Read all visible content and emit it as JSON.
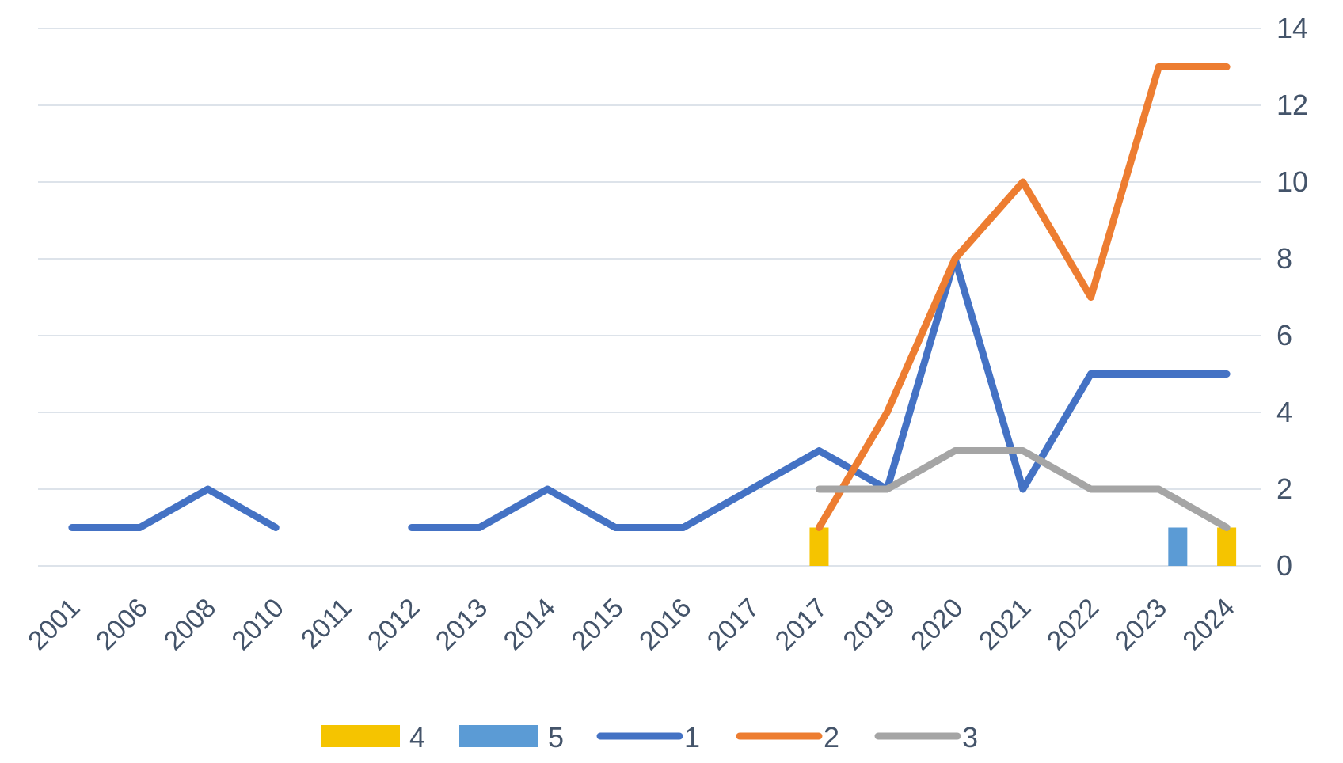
{
  "chart_data": {
    "type": "line",
    "categories": [
      "2001",
      "2006",
      "2008",
      "2010",
      "2011",
      "2012",
      "2013",
      "2014",
      "2015",
      "2016",
      "2017",
      "2017",
      "2019",
      "2020",
      "2021",
      "2022",
      "2023",
      "2024"
    ],
    "ylim": [
      0,
      14
    ],
    "yticks": [
      "0",
      "2",
      "4",
      "6",
      "8",
      "10",
      "12",
      "14"
    ],
    "y_axis_side": "right",
    "grid": true,
    "legend_position": "bottom",
    "colors": {
      "4": "#f5c400",
      "5": "#5b9bd5",
      "1": "#4472c4",
      "2": "#ed7d31",
      "3": "#a5a5a5"
    },
    "series": [
      {
        "name": "4",
        "kind": "bar",
        "values": [
          null,
          null,
          null,
          null,
          null,
          null,
          null,
          null,
          null,
          null,
          null,
          1,
          null,
          null,
          null,
          null,
          null,
          1
        ]
      },
      {
        "name": "5",
        "kind": "bar",
        "values": [
          null,
          null,
          null,
          null,
          null,
          null,
          null,
          null,
          null,
          null,
          null,
          null,
          null,
          null,
          null,
          null,
          1,
          null
        ]
      },
      {
        "name": "1",
        "kind": "line",
        "values": [
          1,
          1,
          2,
          1,
          null,
          1,
          1,
          2,
          1,
          1,
          2,
          3,
          2,
          8,
          2,
          5,
          5,
          5
        ]
      },
      {
        "name": "2",
        "kind": "line",
        "values": [
          null,
          null,
          null,
          null,
          null,
          null,
          null,
          null,
          null,
          null,
          null,
          1,
          4,
          8,
          10,
          7,
          13,
          13
        ]
      },
      {
        "name": "3",
        "kind": "line",
        "values": [
          null,
          null,
          null,
          null,
          null,
          null,
          null,
          null,
          null,
          null,
          null,
          2,
          2,
          3,
          3,
          2,
          2,
          1
        ]
      }
    ]
  }
}
